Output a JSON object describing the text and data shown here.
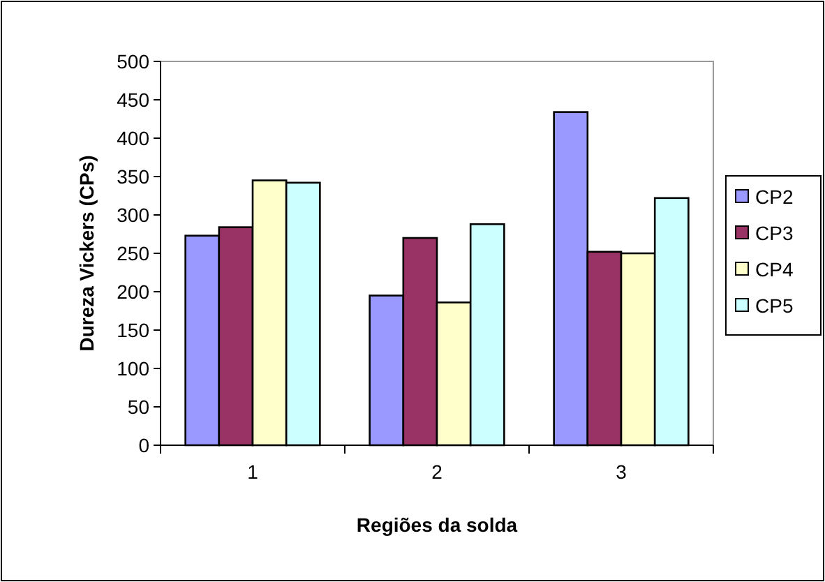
{
  "chart_data": {
    "type": "bar",
    "xlabel": "Regiões da solda",
    "ylabel": "Dureza Vickers (CPs)",
    "categories": [
      "1",
      "2",
      "3"
    ],
    "series": [
      {
        "name": "CP2",
        "color": "#9999ff",
        "values": [
          273,
          195,
          434
        ]
      },
      {
        "name": "CP3",
        "color": "#993366",
        "values": [
          284,
          270,
          252
        ]
      },
      {
        "name": "CP4",
        "color": "#ffffcc",
        "values": [
          345,
          186,
          250
        ]
      },
      {
        "name": "CP5",
        "color": "#ccffff",
        "values": [
          342,
          288,
          322
        ]
      }
    ],
    "ylim": [
      0,
      500
    ],
    "yticks": [
      0,
      50,
      100,
      150,
      200,
      250,
      300,
      350,
      400,
      450,
      500
    ],
    "grid": false,
    "legend": "right"
  }
}
